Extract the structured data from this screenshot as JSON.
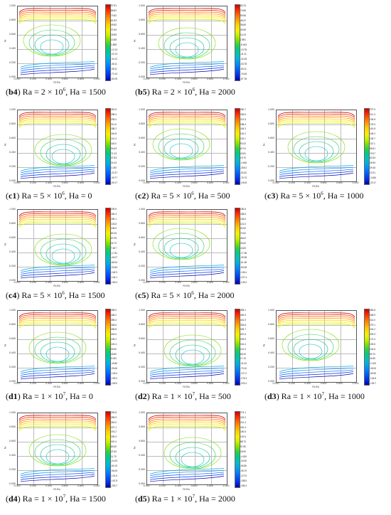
{
  "axis": {
    "y_ticks": [
      "1.000",
      "0.800",
      "0.600",
      "0.400",
      "0.200",
      "0.000"
    ],
    "x_ticks": [
      "0.000",
      "0.200",
      "0.400",
      "0.600",
      "0.800",
      "1.000"
    ],
    "y_label": "Z",
    "x_label": "Ri-Ra"
  },
  "panels": [
    {
      "id": "b4",
      "ra": "2 × 10",
      "exp": "6",
      "ha": "1500",
      "colorbar": [
        "97.81",
        "85.82",
        "73.82",
        "61.83",
        "49.83",
        "37.84",
        "25.85",
        "13.85",
        "1.858",
        "-10.13",
        "-22.13",
        "-34.12",
        "-46.11",
        "-58.11",
        "-70.10",
        "-82.09"
      ]
    },
    {
      "id": "b5",
      "ra": "2 × 10",
      "exp": "6",
      "ha": "2000",
      "colorbar": [
        "82.23",
        "70.89",
        "59.56",
        "48.22",
        "36.89",
        "25.56",
        "14.23",
        "2.891",
        "-8.443",
        "-19.78",
        "-31.11",
        "-42.45",
        "-53.78",
        "-65.11",
        "-76.45",
        "-87.78"
      ]
    },
    {
      "id": "c1",
      "ra": "5 × 10",
      "exp": "6",
      "ha": "0",
      "colorbar": [
        "281.8",
        "258.4",
        "235.0",
        "211.6",
        "188.2",
        "164.8",
        "141.4",
        "118.0",
        "94.63",
        "71.23",
        "47.83",
        "24.43",
        "1.030",
        "-22.37",
        "-45.77",
        "-69.17"
      ]
    },
    {
      "id": "c2",
      "ra": "5 × 10",
      "exp": "6",
      "ha": "500",
      "colorbar": [
        "260.7",
        "236.6",
        "212.5",
        "188.4",
        "164.3",
        "140.2",
        "116.1",
        "92.02",
        "67.91",
        "43.81",
        "19.70",
        "-4.406",
        "-28.51",
        "-52.62",
        "-76.73",
        "-100.8"
      ]
    },
    {
      "id": "c3",
      "ra": "5 × 10",
      "exp": "6",
      "ha": "1000",
      "colorbar": [
        "227.9",
        "211.4",
        "194.8",
        "178.3",
        "161.8",
        "145.2",
        "128.7",
        "112.1",
        "95.61",
        "79.07",
        "62.53",
        "45.99",
        "29.45",
        "12.91",
        "-3.634",
        "-20.17"
      ]
    },
    {
      "id": "c4",
      "ra": "5 × 10",
      "exp": "6",
      "ha": "1500",
      "colorbar": [
        "209.6",
        "184.3",
        "159.1",
        "133.8",
        "108.5",
        "83.25",
        "57.99",
        "32.72",
        "7.457",
        "-17.81",
        "-43.07",
        "-68.34",
        "-93.60",
        "-118.9",
        "-144.1",
        "-169.4"
      ]
    },
    {
      "id": "c5",
      "ra": "5 × 10",
      "exp": "6",
      "ha": "2000",
      "colorbar": [
        "180.6",
        "158.6",
        "136.6",
        "114.6",
        "92.62",
        "70.62",
        "48.62",
        "26.62",
        "4.623",
        "-17.38",
        "-39.38",
        "-61.38",
        "-83.38",
        "-105.4",
        "-127.4",
        "-149.4"
      ]
    },
    {
      "id": "d1",
      "ra": "1 × 10",
      "exp": "7",
      "ha": "0",
      "colorbar": [
        "498.0",
        "448.2",
        "398.4",
        "348.6",
        "298.8",
        "249.0",
        "199.2",
        "149.4",
        "99.60",
        "49.80",
        "0.000",
        "-49.80",
        "-99.60",
        "-149.4",
        "-199.2",
        "-249.0"
      ]
    },
    {
      "id": "d2",
      "ra": "1 × 10",
      "exp": "7",
      "ha": "500",
      "colorbar": [
        "498.1",
        "450.0",
        "401.9",
        "353.8",
        "305.7",
        "257.6",
        "209.5",
        "161.4",
        "113.3",
        "65.20",
        "17.10",
        "-31.00",
        "-79.10",
        "-127.2",
        "-175.3",
        "-223.4"
      ]
    },
    {
      "id": "d3",
      "ra": "1 × 10",
      "exp": "7",
      "ha": "1000",
      "colorbar": [
        "383.8",
        "348.9",
        "314.0",
        "279.1",
        "244.2",
        "209.3",
        "174.4",
        "139.5",
        "104.6",
        "69.70",
        "34.80",
        "-0.100",
        "-35.00",
        "-69.90",
        "-104.8",
        "-139.7"
      ]
    },
    {
      "id": "d4",
      "ra": "1 × 10",
      "exp": "7",
      "ha": "1500",
      "colorbar": [
        "334.8",
        "298.9",
        "263.0",
        "227.1",
        "191.2",
        "155.3",
        "119.4",
        "83.50",
        "47.60",
        "11.70",
        "-24.20",
        "-60.10",
        "-96.00",
        "-131.9",
        "-167.8",
        "-203.7"
      ]
    },
    {
      "id": "d5",
      "ra": "1 × 10",
      "exp": "7",
      "ha": "2000",
      "colorbar": [
        "274.1",
        "243.2",
        "212.3",
        "181.4",
        "150.5",
        "119.6",
        "88.70",
        "57.80",
        "26.90",
        "-4.000",
        "-34.90",
        "-65.80",
        "-96.70",
        "-127.6",
        "-158.5",
        "-189.4"
      ]
    }
  ],
  "colormap": [
    "#c80000",
    "#ff2a00",
    "#ff6a00",
    "#ffa200",
    "#ffd200",
    "#f6f000",
    "#c8f000",
    "#7ee000",
    "#26d04a",
    "#00c88c",
    "#00c0c0",
    "#00a8e6",
    "#0084ff",
    "#0058ff",
    "#0030e6",
    "#0000b4"
  ]
}
